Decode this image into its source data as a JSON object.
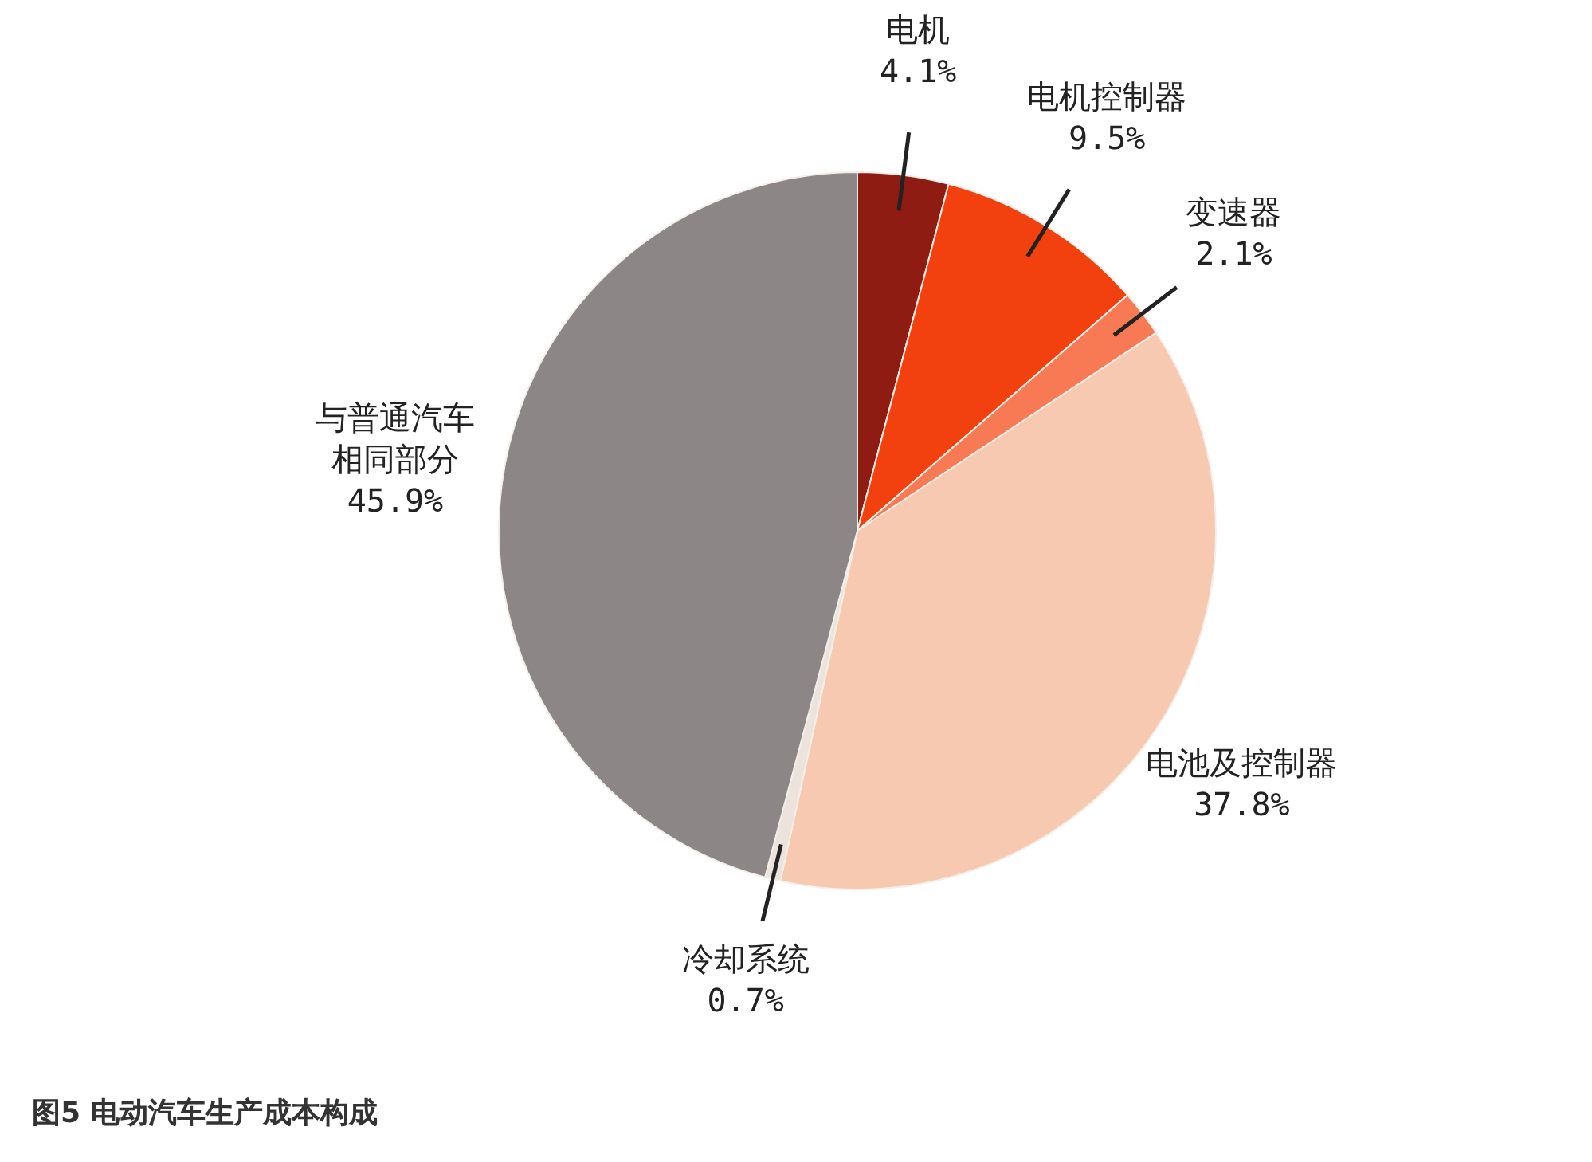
{
  "chart_data": {
    "type": "pie",
    "title": "图5  电动汽车生产成本构成",
    "categories": [
      "电机",
      "电机控制器",
      "变速器",
      "电池及控制器",
      "冷却系统",
      "与普通汽车相同部分"
    ],
    "values": [
      4.1,
      9.5,
      2.1,
      37.8,
      0.7,
      45.9
    ],
    "value_labels": [
      "4.1%",
      "9.5%",
      "2.1%",
      "37.8%",
      "0.7%",
      "45.9%"
    ],
    "colors": [
      "#8e1c12",
      "#f2410f",
      "#f77a55",
      "#f7c9b0",
      "#ebe3dc",
      "#8c8686"
    ]
  }
}
